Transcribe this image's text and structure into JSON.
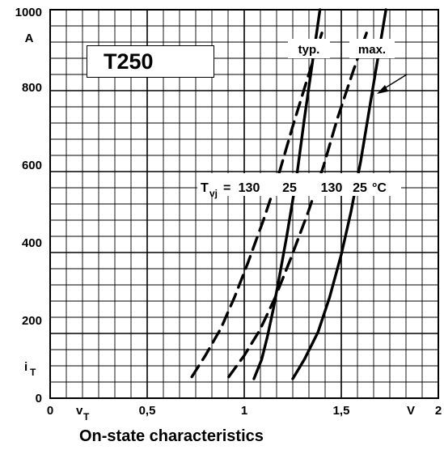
{
  "chart_data": {
    "type": "line",
    "title": "T250",
    "caption": "On-state characteristics",
    "xlabel": "v",
    "xlabel_sub": "T",
    "xunit": "V",
    "ylabel": "i",
    "ylabel_sub": "T",
    "yunit": "A",
    "xlim": [
      0,
      2
    ],
    "ylim": [
      0,
      1000
    ],
    "xticks": [
      {
        "value": 0,
        "label": "0"
      },
      {
        "value": 0.5,
        "label": "0,5"
      },
      {
        "value": 1,
        "label": "1"
      },
      {
        "value": 1.5,
        "label": "1,5"
      },
      {
        "value": 2,
        "label": "2"
      }
    ],
    "yticks": [
      {
        "value": 0,
        "label": "0"
      },
      {
        "value": 200,
        "label": "200"
      },
      {
        "value": 400,
        "label": "400"
      },
      {
        "value": 600,
        "label": "600"
      },
      {
        "value": 800,
        "label": "800"
      },
      {
        "value": 1000,
        "label": "1000"
      }
    ],
    "grid": true,
    "series_label_prefix": "T",
    "series_label_prefix_sub": "vj",
    "series_label_eq": "=",
    "series_label_unit": "°C",
    "group_labels": [
      "typ.",
      "max."
    ],
    "series": [
      {
        "name": "130",
        "group": "typ.",
        "style": "dashed",
        "points": [
          [
            0.73,
            55
          ],
          [
            0.8,
            110
          ],
          [
            0.88,
            180
          ],
          [
            0.95,
            260
          ],
          [
            1.02,
            350
          ],
          [
            1.1,
            460
          ],
          [
            1.18,
            580
          ],
          [
            1.25,
            700
          ],
          [
            1.33,
            830
          ],
          [
            1.4,
            940
          ]
        ]
      },
      {
        "name": "25",
        "group": "typ.",
        "style": "solid",
        "points": [
          [
            1.05,
            50
          ],
          [
            1.09,
            100
          ],
          [
            1.12,
            160
          ],
          [
            1.15,
            230
          ],
          [
            1.18,
            310
          ],
          [
            1.22,
            420
          ],
          [
            1.27,
            570
          ],
          [
            1.31,
            720
          ],
          [
            1.35,
            860
          ],
          [
            1.39,
            1000
          ]
        ]
      },
      {
        "name": "130",
        "group": "max.",
        "style": "dashed",
        "points": [
          [
            0.92,
            55
          ],
          [
            1.0,
            110
          ],
          [
            1.08,
            175
          ],
          [
            1.16,
            260
          ],
          [
            1.24,
            360
          ],
          [
            1.33,
            480
          ],
          [
            1.41,
            600
          ],
          [
            1.48,
            720
          ],
          [
            1.56,
            840
          ],
          [
            1.63,
            940
          ]
        ]
      },
      {
        "name": "25",
        "group": "max.",
        "style": "solid",
        "points": [
          [
            1.25,
            50
          ],
          [
            1.31,
            100
          ],
          [
            1.38,
            170
          ],
          [
            1.44,
            260
          ],
          [
            1.5,
            370
          ],
          [
            1.55,
            480
          ],
          [
            1.6,
            610
          ],
          [
            1.64,
            730
          ],
          [
            1.68,
            850
          ],
          [
            1.73,
            1000
          ]
        ]
      }
    ]
  }
}
